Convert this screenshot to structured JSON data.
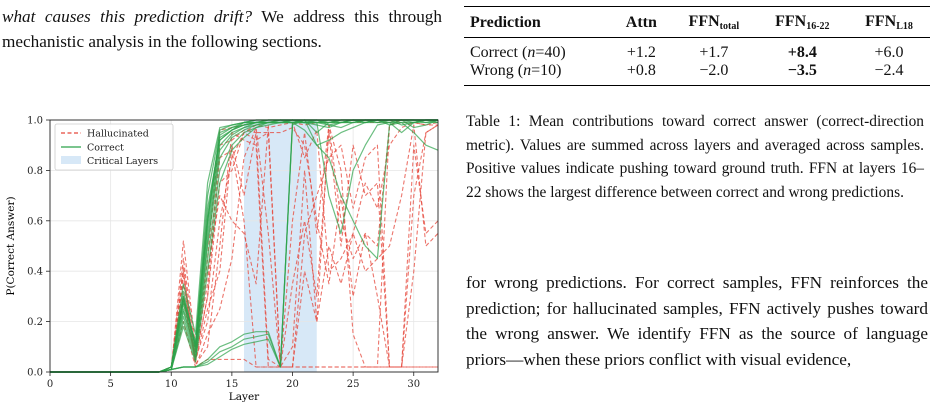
{
  "intro": {
    "question": "what causes this prediction drift?",
    "rest": " We address this through mechanistic analysis in the following sections."
  },
  "table": {
    "headers": {
      "prediction": "Prediction",
      "attn": "Attn",
      "ffn_total_base": "FFN",
      "ffn_total_sub": "total",
      "ffn_mid_base": "FFN",
      "ffn_mid_sub": "16-22",
      "ffn_l18_base": "FFN",
      "ffn_l18_sub": "L18"
    },
    "rows": [
      {
        "label": "Correct (",
        "n": "n",
        "count": "=40)",
        "attn": "+1.2",
        "total": "+1.7",
        "mid": "+8.4",
        "l18": "+6.0"
      },
      {
        "label": "Wrong (",
        "n": "n",
        "count": "=10)",
        "attn": "+0.8",
        "total": "−2.0",
        "mid": "−3.5",
        "l18": "−2.4"
      }
    ]
  },
  "caption": "Table 1: Mean contributions toward correct answer (correct-direction metric). Values are summed across layers and averaged across samples. Positive values indicate pushing toward ground truth. FFN at layers 16–22 shows the largest difference between correct and wrong predictions.",
  "right_paragraph": "for wrong predictions. For correct samples, FFN reinforces the prediction; for hallucinated samples, FFN actively pushes toward the wrong answer. We identify FFN as the source of language priors—when these priors conflict with visual evidence,",
  "chart_data": {
    "type": "line",
    "xlabel": "Layer",
    "ylabel": "P(Correct Answer)",
    "xlim": [
      0,
      32
    ],
    "ylim": [
      0,
      1.0
    ],
    "xticks": [
      "0",
      "5",
      "10",
      "15",
      "20",
      "25",
      "30"
    ],
    "yticks": [
      "0.0",
      "0.2",
      "0.4",
      "0.6",
      "0.8",
      "1.0"
    ],
    "grid": true,
    "legend": {
      "placement": "top-left",
      "entries": [
        "Hallucinated",
        "Correct",
        "Critical Layers"
      ]
    },
    "critical_layers": [
      16,
      22
    ],
    "colors": {
      "hallucinated": "#e5473b",
      "correct": "#2ca24a",
      "critical": "#d7e8f7"
    },
    "series": [
      {
        "group": "Hallucinated",
        "values": [
          0,
          0,
          0,
          0,
          0,
          0,
          0,
          0,
          0,
          0,
          0.02,
          0.45,
          0.08,
          0.35,
          0.9,
          0.92,
          0.96,
          0.95,
          0.05,
          0.02,
          0.6,
          0.95,
          0.55,
          0.98,
          0.6,
          0.45,
          0.55,
          0.5,
          0.98,
          1.0,
          1.0,
          1.0,
          1.0
        ]
      },
      {
        "group": "Hallucinated",
        "values": [
          0,
          0,
          0,
          0,
          0,
          0,
          0,
          0,
          0,
          0,
          0.02,
          0.3,
          0.05,
          0.2,
          0.6,
          0.85,
          0.95,
          0.92,
          0.95,
          0.02,
          0.02,
          0.55,
          0.7,
          0.85,
          0.9,
          0.65,
          0.85,
          0.9,
          0.02,
          0.02,
          0.9,
          0.55,
          0.6
        ]
      },
      {
        "group": "Hallucinated",
        "values": [
          0,
          0,
          0,
          0,
          0,
          0,
          0,
          0,
          0,
          0,
          0.01,
          0.52,
          0.1,
          0.4,
          0.7,
          0.6,
          0.55,
          0.35,
          0.98,
          0.02,
          0.02,
          0.4,
          0.2,
          0.5,
          0.35,
          0.55,
          0.4,
          0.45,
          0.5,
          0.7,
          0.98,
          0.5,
          0.55
        ]
      },
      {
        "group": "Hallucinated",
        "values": [
          0,
          0,
          0,
          0,
          0,
          0,
          0,
          0,
          0,
          0,
          0.01,
          0.38,
          0.02,
          0.05,
          0.05,
          0.05,
          0.05,
          0.02,
          0.02,
          0.02,
          0.35,
          0.6,
          0.3,
          0.95,
          0.5,
          0.9,
          0.7,
          0.75,
          0.02,
          0.02,
          0.7,
          0.95,
          0.98
        ]
      },
      {
        "group": "Hallucinated",
        "values": [
          0,
          0,
          0,
          0,
          0,
          0,
          0,
          0,
          0,
          0,
          0.02,
          0.3,
          0.04,
          0.25,
          0.4,
          0.9,
          0.7,
          0.95,
          0.95,
          0.95,
          0.97,
          0.9,
          0.6,
          0.35,
          0.7,
          0.3,
          0.55,
          0.3,
          0.02,
          0.02,
          0.4,
          0.95,
          0.98
        ]
      },
      {
        "group": "Hallucinated",
        "values": [
          0,
          0,
          0,
          0,
          0,
          0,
          0,
          0,
          0,
          0,
          0.01,
          0.4,
          0.06,
          0.3,
          0.85,
          0.88,
          0.6,
          0.02,
          0.02,
          0.02,
          0.02,
          0.02,
          0.02,
          0.02,
          0.02,
          0.02,
          0.02,
          0.02,
          0.02,
          0.02,
          0.02,
          0.02,
          0.02
        ]
      },
      {
        "group": "Hallucinated",
        "values": [
          0,
          0,
          0,
          0,
          0,
          0,
          0,
          0,
          0,
          0,
          0.02,
          0.28,
          0.05,
          0.3,
          0.75,
          0.8,
          0.95,
          0.98,
          0.97,
          0.98,
          0.99,
          0.85,
          0.96,
          0.4,
          0.45,
          0.55,
          0.75,
          0.65,
          0.9,
          0.97,
          0.99,
          0.98,
          0.99
        ]
      },
      {
        "group": "Hallucinated",
        "values": [
          0,
          0,
          0,
          0,
          0,
          0,
          0,
          0,
          0,
          0,
          0.01,
          0.42,
          0.03,
          0.1,
          0.5,
          0.95,
          0.92,
          0.9,
          0.02,
          0.02,
          0.02,
          0.02,
          0.02,
          0.02,
          0.02,
          0.02,
          0.02,
          0.02,
          0.98,
          0.99,
          0.99,
          0.98,
          0.98
        ]
      },
      {
        "group": "Hallucinated",
        "values": [
          0,
          0,
          0,
          0,
          0,
          0,
          0,
          0,
          0,
          0,
          0.01,
          0.2,
          0.02,
          0.15,
          0.25,
          0.45,
          0.85,
          0.97,
          0.55,
          0.02,
          0.1,
          0.8,
          0.2,
          0.98,
          0.8,
          0.15,
          0.02,
          0.02,
          0.02,
          0.02,
          0.02,
          0.02,
          0.02
        ]
      },
      {
        "group": "Hallucinated",
        "values": [
          0,
          0,
          0,
          0,
          0,
          0,
          0,
          0,
          0,
          0,
          0.02,
          0.35,
          0.08,
          0.45,
          0.96,
          0.97,
          0.98,
          0.99,
          0.99,
          0.99,
          0.99,
          0.98,
          0.99,
          0.99,
          0.99,
          0.99,
          0.99,
          0.99,
          0.99,
          1.0,
          1.0,
          1.0,
          1.0
        ]
      },
      {
        "group": "Correct",
        "values": [
          0,
          0,
          0,
          0,
          0,
          0,
          0,
          0,
          0,
          0,
          0.02,
          0.3,
          0.1,
          0.6,
          0.95,
          0.97,
          0.98,
          0.99,
          0.99,
          0.99,
          1.0,
          1.0,
          1.0,
          1.0,
          1.0,
          1.0,
          1.0,
          1.0,
          1.0,
          1.0,
          1.0,
          1.0,
          1.0
        ]
      },
      {
        "group": "Correct",
        "values": [
          0,
          0,
          0,
          0,
          0,
          0,
          0,
          0,
          0,
          0,
          0.02,
          0.25,
          0.08,
          0.55,
          0.9,
          0.95,
          0.97,
          0.99,
          0.99,
          1.0,
          1.0,
          0.99,
          0.98,
          0.97,
          0.99,
          1.0,
          1.0,
          0.99,
          1.0,
          1.0,
          1.0,
          1.0,
          1.0
        ]
      },
      {
        "group": "Correct",
        "values": [
          0,
          0,
          0,
          0,
          0,
          0,
          0,
          0,
          0,
          0,
          0.01,
          0.22,
          0.06,
          0.5,
          0.85,
          0.93,
          0.96,
          0.98,
          0.99,
          0.99,
          0.99,
          1.0,
          1.0,
          0.98,
          0.99,
          1.0,
          1.0,
          1.0,
          0.98,
          1.0,
          0.99,
          1.0,
          1.0
        ]
      },
      {
        "group": "Correct",
        "values": [
          0,
          0,
          0,
          0,
          0,
          0,
          0,
          0,
          0,
          0,
          0.02,
          0.28,
          0.12,
          0.65,
          0.92,
          0.96,
          0.99,
          0.99,
          1.0,
          1.0,
          1.0,
          1.0,
          0.95,
          0.99,
          1.0,
          1.0,
          0.99,
          1.0,
          1.0,
          1.0,
          1.0,
          1.0,
          1.0
        ]
      },
      {
        "group": "Correct",
        "values": [
          0,
          0,
          0,
          0,
          0,
          0,
          0,
          0,
          0,
          0,
          0.01,
          0.2,
          0.05,
          0.45,
          0.8,
          0.9,
          0.95,
          0.97,
          0.99,
          0.99,
          0.99,
          0.99,
          0.99,
          0.99,
          0.99,
          0.99,
          0.99,
          0.99,
          0.99,
          0.99,
          0.99,
          0.99,
          0.99
        ]
      },
      {
        "group": "Correct",
        "values": [
          0,
          0,
          0,
          0,
          0,
          0,
          0,
          0,
          0,
          0,
          0.02,
          0.32,
          0.1,
          0.7,
          0.96,
          0.98,
          0.99,
          1.0,
          1.0,
          1.0,
          1.0,
          1.0,
          1.0,
          1.0,
          1.0,
          1.0,
          1.0,
          1.0,
          1.0,
          1.0,
          1.0,
          0.99,
          1.0
        ]
      },
      {
        "group": "Correct",
        "values": [
          0,
          0,
          0,
          0,
          0,
          0,
          0,
          0,
          0,
          0,
          0.01,
          0.18,
          0.04,
          0.4,
          0.75,
          0.88,
          0.93,
          0.97,
          0.98,
          0.99,
          0.99,
          0.99,
          0.99,
          0.7,
          0.55,
          0.8,
          0.9,
          0.98,
          0.99,
          0.95,
          0.99,
          1.0,
          1.0
        ]
      },
      {
        "group": "Correct",
        "values": [
          0,
          0,
          0,
          0,
          0,
          0,
          0,
          0,
          0,
          0,
          0.02,
          0.27,
          0.09,
          0.58,
          0.92,
          0.96,
          0.98,
          0.99,
          0.99,
          0.99,
          1.0,
          1.0,
          0.99,
          0.98,
          0.97,
          0.99,
          1.0,
          1.0,
          1.0,
          0.98,
          0.99,
          1.0,
          1.0
        ]
      },
      {
        "group": "Correct",
        "values": [
          0,
          0,
          0,
          0,
          0,
          0,
          0,
          0,
          0,
          0,
          0.01,
          0.24,
          0.07,
          0.52,
          0.88,
          0.94,
          0.97,
          0.98,
          0.99,
          0.99,
          0.99,
          1.0,
          1.0,
          1.0,
          0.99,
          0.99,
          1.0,
          1.0,
          1.0,
          1.0,
          1.0,
          1.0,
          0.99
        ]
      },
      {
        "group": "Correct",
        "values": [
          0,
          0,
          0,
          0,
          0,
          0,
          0,
          0,
          0,
          0,
          0.02,
          0.3,
          0.11,
          0.62,
          0.94,
          0.97,
          0.99,
          0.99,
          1.0,
          1.0,
          1.0,
          0.99,
          0.99,
          1.0,
          1.0,
          1.0,
          1.0,
          1.0,
          1.0,
          1.0,
          1.0,
          1.0,
          1.0
        ]
      },
      {
        "group": "Correct",
        "values": [
          0,
          0,
          0,
          0,
          0,
          0,
          0,
          0,
          0,
          0,
          0.01,
          0.02,
          0.02,
          0.05,
          0.1,
          0.12,
          0.15,
          0.16,
          0.16,
          0.02,
          0.99,
          0.99,
          1.0,
          1.0,
          1.0,
          1.0,
          0.99,
          1.0,
          1.0,
          1.0,
          1.0,
          1.0,
          1.0
        ]
      },
      {
        "group": "Correct",
        "values": [
          0,
          0,
          0,
          0,
          0,
          0,
          0,
          0,
          0,
          0,
          0.01,
          0.02,
          0.02,
          0.04,
          0.08,
          0.1,
          0.13,
          0.14,
          0.15,
          0.02,
          0.98,
          1.0,
          1.0,
          0.99,
          1.0,
          1.0,
          1.0,
          1.0,
          1.0,
          1.0,
          1.0,
          1.0,
          1.0
        ]
      },
      {
        "group": "Correct",
        "values": [
          0,
          0,
          0,
          0,
          0,
          0,
          0,
          0,
          0,
          0,
          0.01,
          0.02,
          0.02,
          0.03,
          0.06,
          0.09,
          0.11,
          0.12,
          0.13,
          0.02,
          0.99,
          0.99,
          0.99,
          0.99,
          0.99,
          1.0,
          1.0,
          1.0,
          0.99,
          1.0,
          1.0,
          1.0,
          1.0
        ]
      },
      {
        "group": "Correct",
        "values": [
          0,
          0,
          0,
          0,
          0,
          0,
          0,
          0,
          0,
          0,
          0.02,
          0.35,
          0.15,
          0.75,
          0.97,
          0.98,
          0.99,
          1.0,
          1.0,
          1.0,
          0.99,
          0.96,
          0.9,
          0.85,
          0.7,
          0.6,
          0.5,
          0.45,
          0.98,
          0.99,
          0.95,
          0.9,
          0.88
        ]
      },
      {
        "group": "Correct",
        "values": [
          0,
          0,
          0,
          0,
          0,
          0,
          0,
          0,
          0,
          0,
          0.02,
          0.29,
          0.1,
          0.6,
          0.93,
          0.96,
          0.98,
          0.99,
          0.99,
          1.0,
          1.0,
          1.0,
          0.9,
          0.92,
          0.95,
          0.97,
          0.99,
          1.0,
          1.0,
          1.0,
          0.97,
          0.98,
          1.0
        ]
      }
    ]
  }
}
